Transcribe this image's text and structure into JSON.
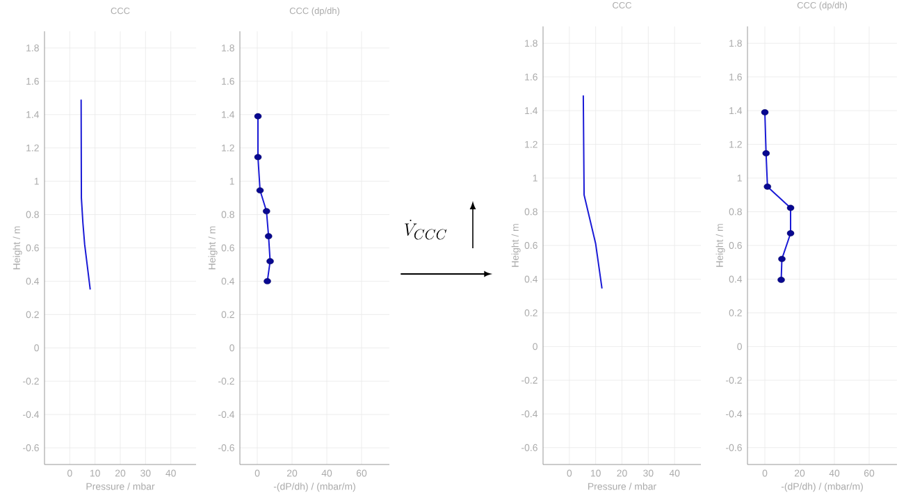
{
  "chart_data": [
    {
      "type": "line",
      "title": "CCC",
      "xlabel": "Pressure / mbar",
      "ylabel": "Height / m",
      "xlim": [
        -10,
        50
      ],
      "ylim": [
        -0.7,
        1.9
      ],
      "xticks": [
        0,
        10,
        20,
        30,
        40
      ],
      "yticks": [
        -0.6,
        -0.4,
        -0.2,
        0,
        0.2,
        0.4,
        0.6,
        0.8,
        1,
        1.2,
        1.4,
        1.6,
        1.8
      ],
      "grid": true,
      "series": [
        {
          "color": "#1a1ad6",
          "x": [
            4.5,
            4.6,
            5.2,
            5.9,
            8.1
          ],
          "values": [
            1.49,
            0.9,
            0.75,
            0.62,
            0.35
          ]
        }
      ]
    },
    {
      "type": "line",
      "title": "CCC (dp/dh)",
      "xlabel": "-(dP/dh) / (mbar/m)",
      "ylabel": "Height / m",
      "xlim": [
        -10,
        76
      ],
      "ylim": [
        -0.7,
        1.9
      ],
      "xticks": [
        0,
        20,
        40,
        60
      ],
      "yticks": [
        -0.6,
        -0.4,
        -0.2,
        0,
        0.2,
        0.4,
        0.6,
        0.8,
        1,
        1.2,
        1.4,
        1.6,
        1.8
      ],
      "grid": true,
      "marker": "circle",
      "series": [
        {
          "color": "#1a1ad6",
          "x": [
            0.4,
            0.4,
            1.6,
            5.3,
            6.5,
            7.4,
            5.8
          ],
          "values": [
            1.39,
            1.145,
            0.945,
            0.82,
            0.67,
            0.52,
            0.4
          ]
        }
      ]
    },
    {
      "type": "line",
      "title": "CCC",
      "xlabel": "Pressure / mbar",
      "ylabel": "Height / m",
      "xlim": [
        -10,
        50
      ],
      "ylim": [
        -0.7,
        1.9
      ],
      "xticks": [
        0,
        10,
        20,
        30,
        40
      ],
      "yticks": [
        -0.6,
        -0.4,
        -0.2,
        0,
        0.2,
        0.4,
        0.6,
        0.8,
        1,
        1.2,
        1.4,
        1.6,
        1.8
      ],
      "grid": true,
      "series": [
        {
          "color": "#1a1ad6",
          "x": [
            5.3,
            5.6,
            10.0,
            12.4
          ],
          "values": [
            1.49,
            0.9,
            0.61,
            0.345
          ]
        }
      ]
    },
    {
      "type": "line",
      "title": "CCC (dp/dh)",
      "xlabel": "-(dP/dh) / (mbar/m)",
      "ylabel": "Height / m",
      "xlim": [
        -10,
        76
      ],
      "ylim": [
        -0.7,
        1.9
      ],
      "xticks": [
        0,
        20,
        40,
        60
      ],
      "yticks": [
        -0.6,
        -0.4,
        -0.2,
        0,
        0.2,
        0.4,
        0.6,
        0.8,
        1,
        1.2,
        1.4,
        1.6,
        1.8
      ],
      "grid": true,
      "marker": "circle",
      "series": [
        {
          "color": "#1a1ad6",
          "x": [
            0,
            0.7,
            1.5,
            14.8,
            14.8,
            9.8,
            9.4
          ],
          "values": [
            1.39,
            1.147,
            0.949,
            0.823,
            0.672,
            0.52,
            0.396
          ]
        }
      ]
    },
    {
      "type": "other",
      "annotations": [
        "\\dot{V}_{CCC}"
      ]
    }
  ]
}
